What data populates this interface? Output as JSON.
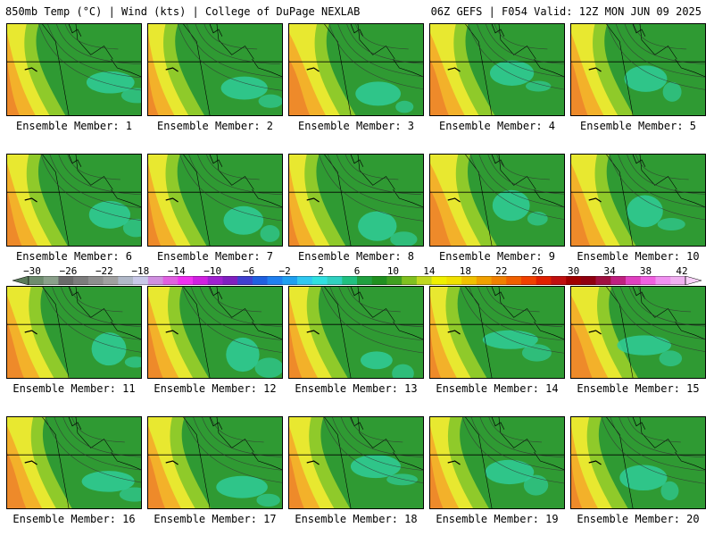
{
  "header": {
    "left_title": "850mb Temp (°C) | Wind (kts) | College of DuPage NEXLAB",
    "right_title": "06Z GEFS | F054 Valid: 12Z MON JUN 09 2025"
  },
  "panels": [
    {
      "label": "Ensemble Member: 1"
    },
    {
      "label": "Ensemble Member: 2"
    },
    {
      "label": "Ensemble Member: 3"
    },
    {
      "label": "Ensemble Member: 4"
    },
    {
      "label": "Ensemble Member: 5"
    },
    {
      "label": "Ensemble Member: 6"
    },
    {
      "label": "Ensemble Member: 7"
    },
    {
      "label": "Ensemble Member: 8"
    },
    {
      "label": "Ensemble Member: 9"
    },
    {
      "label": "Ensemble Member: 10"
    },
    {
      "label": "Ensemble Member: 11"
    },
    {
      "label": "Ensemble Member: 12"
    },
    {
      "label": "Ensemble Member: 13"
    },
    {
      "label": "Ensemble Member: 14"
    },
    {
      "label": "Ensemble Member: 15"
    },
    {
      "label": "Ensemble Member: 16"
    },
    {
      "label": "Ensemble Member: 17"
    },
    {
      "label": "Ensemble Member: 18"
    },
    {
      "label": "Ensemble Member: 19"
    },
    {
      "label": "Ensemble Member: 20"
    }
  ],
  "colorbar": {
    "labels": [
      "−30",
      "−26",
      "−22",
      "−18",
      "−14",
      "−10",
      "−6",
      "−2",
      "2",
      "6",
      "10",
      "14",
      "18",
      "22",
      "26",
      "30",
      "34",
      "38",
      "42"
    ],
    "colors": [
      "#6e8c6e",
      "#8aa08a",
      "#6a6a6a",
      "#7c7c7c",
      "#8e8e8e",
      "#a0a0a0",
      "#b0b8c8",
      "#c8c8e8",
      "#d090e0",
      "#e060e0",
      "#f030f0",
      "#d020e0",
      "#a020d0",
      "#8020c0",
      "#4040d0",
      "#2060e0",
      "#2080f0",
      "#20a0f0",
      "#30c8f0",
      "#30e0e0",
      "#30d0c0",
      "#20c080",
      "#20a040",
      "#209020",
      "#40a020",
      "#80c020",
      "#c0d820",
      "#f0f000",
      "#f0e000",
      "#f0c000",
      "#f0a000",
      "#f08000",
      "#f06000",
      "#f04000",
      "#e02000",
      "#c01010",
      "#a00000",
      "#900010",
      "#a01040",
      "#c02080",
      "#e040c0",
      "#f060e0",
      "#f090f0",
      "#f0b0f0"
    ]
  },
  "legend_palette": {
    "map_green": "#2f9a33",
    "map_teal": "#2fcc99",
    "map_lime": "#8fca2a",
    "map_yellow": "#e8e830",
    "map_orange": "#f3b12a",
    "map_redorange": "#ee8a2a"
  }
}
